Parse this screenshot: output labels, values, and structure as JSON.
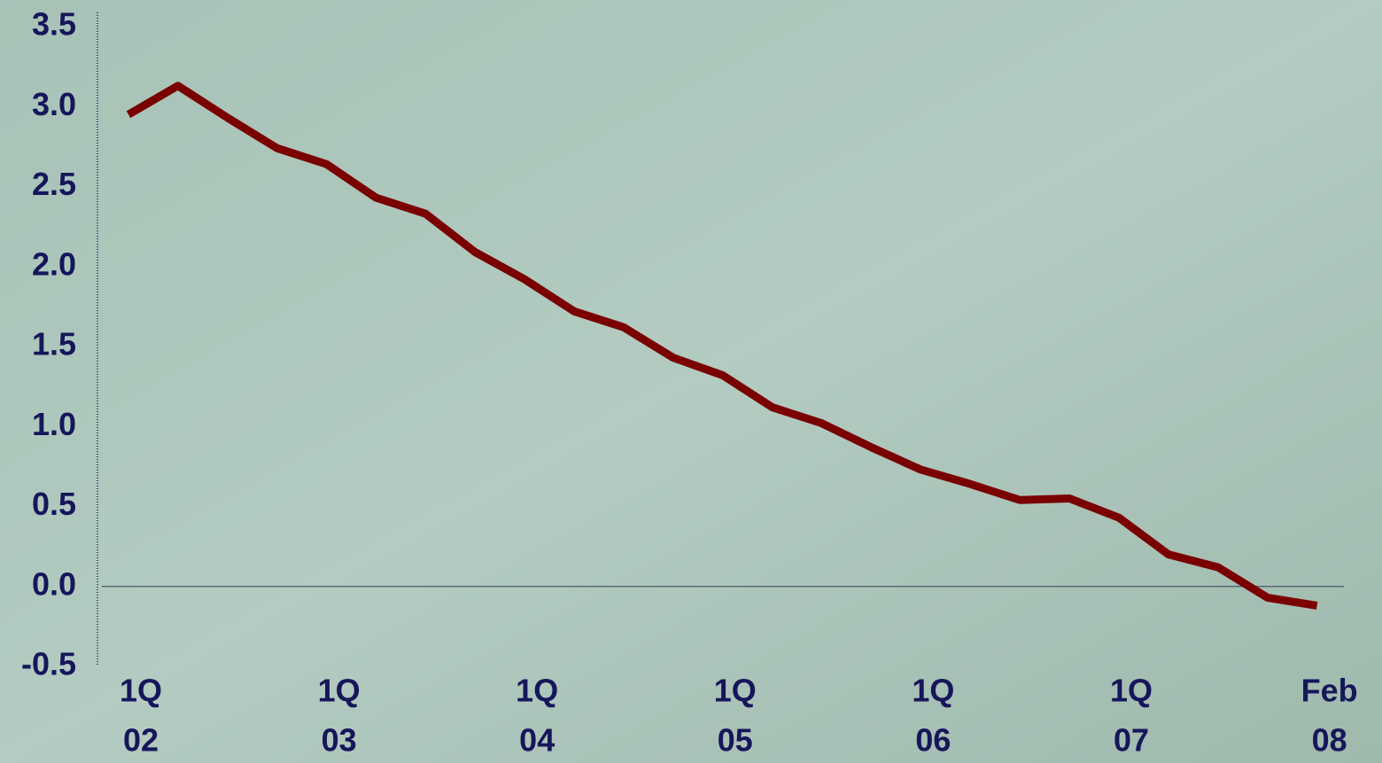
{
  "chart_data": {
    "type": "line",
    "categories": [
      [
        "1Q",
        "02"
      ],
      null,
      null,
      null,
      [
        "1Q",
        "03"
      ],
      null,
      null,
      null,
      [
        "1Q",
        "04"
      ],
      null,
      null,
      null,
      [
        "1Q",
        "05"
      ],
      null,
      null,
      null,
      [
        "1Q",
        "06"
      ],
      null,
      null,
      null,
      [
        "1Q",
        "07"
      ],
      null,
      null,
      null,
      [
        "Feb",
        "08"
      ]
    ],
    "series": [
      {
        "color": "#7a0000",
        "values": [
          2.95,
          3.13,
          2.93,
          2.74,
          2.64,
          2.43,
          2.33,
          2.09,
          1.92,
          1.72,
          1.62,
          1.43,
          1.32,
          1.12,
          1.02,
          0.87,
          0.73,
          0.64,
          0.54,
          0.55,
          0.43,
          0.2,
          0.12,
          -0.07,
          -0.12
        ]
      }
    ],
    "ylim": [
      -0.5,
      3.5
    ],
    "yticks": [
      -0.5,
      {
        "value": 0,
        "label": "0.0"
      },
      0.5,
      {
        "value": 1,
        "label": "1.0"
      },
      1.5,
      {
        "value": 2,
        "label": "2.0"
      },
      2.5,
      {
        "value": 3,
        "label": "3.0"
      },
      3.5
    ],
    "grid": false
  }
}
